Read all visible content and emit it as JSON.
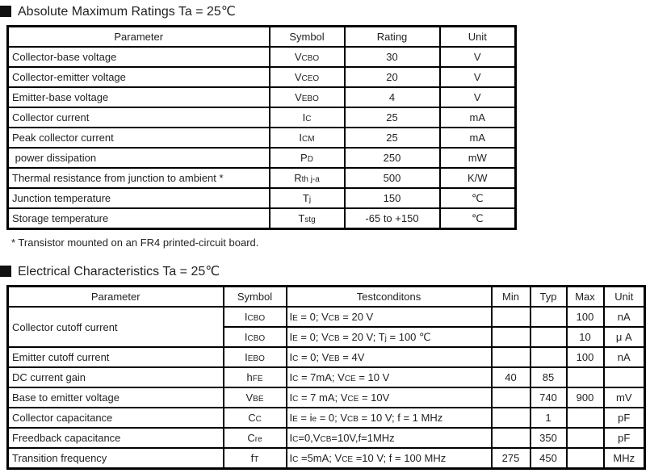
{
  "abs_max": {
    "title": "Absolute Maximum Ratings Ta = 25℃",
    "headers": [
      "Parameter",
      "Symbol",
      "Rating",
      "Unit"
    ],
    "rows": [
      {
        "parameter": "Collector-base voltage",
        "symbol": "V_{CBO}",
        "rating": "30",
        "unit": "V"
      },
      {
        "parameter": "Collector-emitter voltage",
        "symbol": "V_{CEO}",
        "rating": "20",
        "unit": "V"
      },
      {
        "parameter": "Emitter-base voltage",
        "symbol": "V_{EBO}",
        "rating": "4",
        "unit": "V"
      },
      {
        "parameter": "Collector current",
        "symbol": "I_{C}",
        "rating": "25",
        "unit": "mA"
      },
      {
        "parameter": "Peak collector current",
        "symbol": "I_{CM}",
        "rating": "25",
        "unit": "mA"
      },
      {
        "parameter": " power dissipation",
        "symbol": "P_{D}",
        "rating": "250",
        "unit": "mW"
      },
      {
        "parameter": "Thermal resistance from junction to ambient  *",
        "symbol": "R_{th j-a}",
        "rating": "500",
        "unit": "K/W"
      },
      {
        "parameter": "Junction temperature",
        "symbol": "T_{j}",
        "rating": "150",
        "unit": "℃"
      },
      {
        "parameter": "Storage temperature",
        "symbol": "T_{stg}",
        "rating": "-65 to +150",
        "unit": "℃"
      }
    ],
    "footnote": "* Transistor mounted on an FR4 printed-circuit board."
  },
  "elec_char": {
    "title": "Electrical Characteristics Ta = 25℃",
    "headers": [
      "Parameter",
      "Symbol",
      "Testconditons",
      "Min",
      "Typ",
      "Max",
      "Unit"
    ],
    "rows": [
      {
        "parameter": "Collector cutoff current",
        "param_rowspan": 2,
        "symbol": "I_{CBO}",
        "testcond": "I_{E} = 0; V_{CB} = 20 V",
        "min": "",
        "typ": "",
        "max": "100",
        "unit": "nA"
      },
      {
        "symbol": "I_{CBO}",
        "testcond": "I_{E} = 0; V_{CB} = 20 V; T_{j} = 100 ℃",
        "min": "",
        "typ": "",
        "max": "10",
        "unit": "μ A"
      },
      {
        "parameter": "Emitter cutoff current",
        "symbol": "I_{EBO}",
        "testcond": "I_{C} = 0; V_{EB} = 4V",
        "min": "",
        "typ": "",
        "max": "100",
        "unit": "nA"
      },
      {
        "parameter": "DC current gain",
        "symbol": "h_{FE}",
        "testcond": "I_{C} = 7mA; V_{CE} = 10 V",
        "min": "40",
        "typ": "85",
        "max": "",
        "unit": ""
      },
      {
        "parameter": "Base to emitter voltage",
        "symbol": "V_{BE}",
        "testcond": "I_{C} = 7 mA; V_{CE} = 10V",
        "min": "",
        "typ": "740",
        "max": "900",
        "unit": "mV"
      },
      {
        "parameter": "Collector capacitance",
        "symbol": "C_{C}",
        "testcond": "I_{E} = i_{e} = 0; V_{CB} = 10 V; f = 1 MHz",
        "min": "",
        "typ": "1",
        "max": "",
        "unit": "pF"
      },
      {
        "parameter": "Freedback capacitance",
        "symbol": "C_{re}",
        "testcond": "I_{C}=0,V_{CB}=10V,f=1MHz",
        "min": "",
        "typ": "350",
        "max": "",
        "unit": "pF"
      },
      {
        "parameter": "Transition frequency",
        "symbol": "f_{T}",
        "testcond": "I_{C} =5mA; V_{CE} =10 V; f = 100 MHz",
        "min": "275",
        "typ": "450",
        "max": "",
        "unit": "MHz"
      }
    ]
  }
}
